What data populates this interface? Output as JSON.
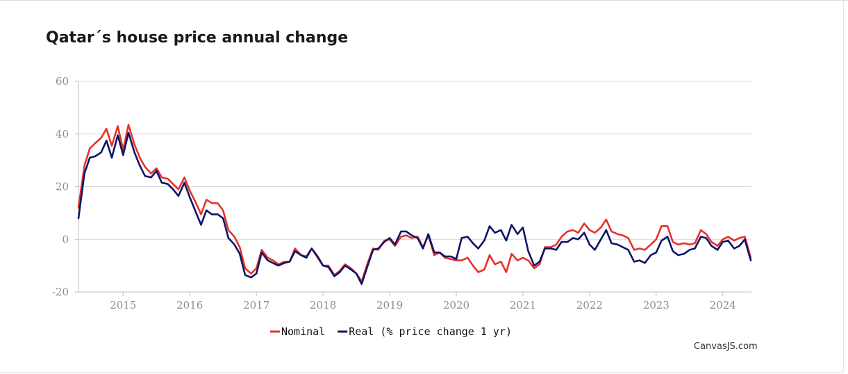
{
  "chart_data": {
    "type": "line",
    "title": "Qatar´s house price annual change",
    "xlabel": "",
    "ylabel": "",
    "ylim": [
      -20,
      60
    ],
    "yticks": [
      60,
      40,
      20,
      0,
      -20
    ],
    "xlim": [
      2014.33,
      2024.33
    ],
    "xticks": [
      "2015",
      "2016",
      "2017",
      "2018",
      "2019",
      "2020",
      "2021",
      "2022",
      "2023",
      "2024"
    ],
    "grid": true,
    "legend": "bottom",
    "series": [
      {
        "name": "Nominal",
        "color": "#e8302a",
        "points": [
          [
            2014.33,
            12
          ],
          [
            2014.42,
            28
          ],
          [
            2014.5,
            34.5
          ],
          [
            2014.58,
            36.5
          ],
          [
            2014.67,
            38.5
          ],
          [
            2014.75,
            42
          ],
          [
            2014.83,
            35.5
          ],
          [
            2014.92,
            43
          ],
          [
            2015.0,
            34
          ],
          [
            2015.08,
            43.5
          ],
          [
            2015.17,
            36
          ],
          [
            2015.25,
            31
          ],
          [
            2015.33,
            27.5
          ],
          [
            2015.42,
            25
          ],
          [
            2015.5,
            27
          ],
          [
            2015.58,
            23.5
          ],
          [
            2015.67,
            23
          ],
          [
            2015.75,
            21
          ],
          [
            2015.83,
            19
          ],
          [
            2015.92,
            23.5
          ],
          [
            2016.0,
            18.5
          ],
          [
            2016.08,
            14.5
          ],
          [
            2016.17,
            9.5
          ],
          [
            2016.25,
            15
          ],
          [
            2016.33,
            13.8
          ],
          [
            2016.42,
            13.7
          ],
          [
            2016.5,
            11
          ],
          [
            2016.58,
            3.5
          ],
          [
            2016.67,
            1
          ],
          [
            2016.75,
            -3
          ],
          [
            2016.83,
            -11
          ],
          [
            2016.92,
            -13
          ],
          [
            2017.0,
            -11
          ],
          [
            2017.08,
            -4
          ],
          [
            2017.17,
            -7
          ],
          [
            2017.25,
            -8
          ],
          [
            2017.33,
            -9.5
          ],
          [
            2017.42,
            -8.5
          ],
          [
            2017.5,
            -8.5
          ],
          [
            2017.58,
            -3.5
          ],
          [
            2017.67,
            -6
          ],
          [
            2017.75,
            -6.5
          ],
          [
            2017.83,
            -3.5
          ],
          [
            2017.92,
            -7
          ],
          [
            2018.0,
            -10
          ],
          [
            2018.08,
            -10
          ],
          [
            2018.17,
            -13.5
          ],
          [
            2018.25,
            -12
          ],
          [
            2018.33,
            -9.5
          ],
          [
            2018.42,
            -11
          ],
          [
            2018.5,
            -13
          ],
          [
            2018.58,
            -16
          ],
          [
            2018.67,
            -9
          ],
          [
            2018.75,
            -3.5
          ],
          [
            2018.83,
            -4
          ],
          [
            2018.92,
            -0.5
          ],
          [
            2019.0,
            0
          ],
          [
            2019.08,
            -2.5
          ],
          [
            2019.17,
            1
          ],
          [
            2019.25,
            1.5
          ],
          [
            2019.33,
            0.5
          ],
          [
            2019.42,
            1
          ],
          [
            2019.5,
            -3
          ],
          [
            2019.58,
            1.5
          ],
          [
            2019.67,
            -6
          ],
          [
            2019.75,
            -5
          ],
          [
            2019.83,
            -7
          ],
          [
            2019.92,
            -7.5
          ],
          [
            2020.0,
            -8
          ],
          [
            2020.08,
            -8
          ],
          [
            2020.17,
            -7
          ],
          [
            2020.25,
            -10
          ],
          [
            2020.33,
            -12.5
          ],
          [
            2020.42,
            -11.5
          ],
          [
            2020.5,
            -6
          ],
          [
            2020.58,
            -9.5
          ],
          [
            2020.67,
            -8.5
          ],
          [
            2020.75,
            -12.5
          ],
          [
            2020.83,
            -5.5
          ],
          [
            2020.92,
            -8
          ],
          [
            2021.0,
            -7
          ],
          [
            2021.08,
            -8
          ],
          [
            2021.17,
            -11
          ],
          [
            2021.25,
            -9.5
          ],
          [
            2021.33,
            -3
          ],
          [
            2021.42,
            -3
          ],
          [
            2021.5,
            -2
          ],
          [
            2021.58,
            1
          ],
          [
            2021.67,
            3
          ],
          [
            2021.75,
            3.5
          ],
          [
            2021.83,
            2.5
          ],
          [
            2021.92,
            6
          ],
          [
            2022.0,
            3.5
          ],
          [
            2022.08,
            2.5
          ],
          [
            2022.17,
            4.5
          ],
          [
            2022.25,
            7.5
          ],
          [
            2022.33,
            3
          ],
          [
            2022.42,
            2
          ],
          [
            2022.5,
            1.5
          ],
          [
            2022.58,
            0.5
          ],
          [
            2022.67,
            -4
          ],
          [
            2022.75,
            -3.5
          ],
          [
            2022.83,
            -4
          ],
          [
            2022.92,
            -2
          ],
          [
            2023.0,
            0
          ],
          [
            2023.08,
            5
          ],
          [
            2023.17,
            5
          ],
          [
            2023.25,
            -1
          ],
          [
            2023.33,
            -2
          ],
          [
            2023.42,
            -1.5
          ],
          [
            2023.5,
            -2
          ],
          [
            2023.58,
            -1.5
          ],
          [
            2023.67,
            3.5
          ],
          [
            2023.75,
            2
          ],
          [
            2023.83,
            -1
          ],
          [
            2023.92,
            -2.5
          ],
          [
            2024.0,
            0
          ],
          [
            2024.08,
            1
          ],
          [
            2024.17,
            -0.5
          ],
          [
            2024.25,
            0.5
          ],
          [
            2024.33,
            1
          ],
          [
            2024.42,
            -7
          ]
        ]
      },
      {
        "name": "Real (% price change 1 yr)",
        "color": "#0d1566",
        "points": [
          [
            2014.33,
            8
          ],
          [
            2014.42,
            25
          ],
          [
            2014.5,
            31
          ],
          [
            2014.58,
            31.5
          ],
          [
            2014.67,
            33
          ],
          [
            2014.75,
            37.5
          ],
          [
            2014.83,
            31
          ],
          [
            2014.92,
            39.5
          ],
          [
            2015.0,
            32
          ],
          [
            2015.08,
            40.5
          ],
          [
            2015.17,
            33
          ],
          [
            2015.25,
            28
          ],
          [
            2015.33,
            24
          ],
          [
            2015.42,
            23.5
          ],
          [
            2015.5,
            26
          ],
          [
            2015.58,
            21.5
          ],
          [
            2015.67,
            21
          ],
          [
            2015.75,
            19
          ],
          [
            2015.83,
            16.5
          ],
          [
            2015.92,
            21.5
          ],
          [
            2016.0,
            16
          ],
          [
            2016.08,
            11
          ],
          [
            2016.17,
            5.5
          ],
          [
            2016.25,
            11
          ],
          [
            2016.33,
            9.5
          ],
          [
            2016.42,
            9.5
          ],
          [
            2016.5,
            8
          ],
          [
            2016.58,
            0.5
          ],
          [
            2016.67,
            -2
          ],
          [
            2016.75,
            -5.5
          ],
          [
            2016.83,
            -13.5
          ],
          [
            2016.92,
            -14.5
          ],
          [
            2017.0,
            -13
          ],
          [
            2017.08,
            -5
          ],
          [
            2017.17,
            -8
          ],
          [
            2017.25,
            -9
          ],
          [
            2017.33,
            -10
          ],
          [
            2017.42,
            -9
          ],
          [
            2017.5,
            -8.5
          ],
          [
            2017.58,
            -4.5
          ],
          [
            2017.67,
            -6
          ],
          [
            2017.75,
            -7
          ],
          [
            2017.83,
            -3.5
          ],
          [
            2017.92,
            -6.5
          ],
          [
            2018.0,
            -10
          ],
          [
            2018.08,
            -10.5
          ],
          [
            2018.17,
            -14
          ],
          [
            2018.25,
            -12.5
          ],
          [
            2018.33,
            -10
          ],
          [
            2018.42,
            -11.5
          ],
          [
            2018.5,
            -13
          ],
          [
            2018.58,
            -17
          ],
          [
            2018.67,
            -10
          ],
          [
            2018.75,
            -4
          ],
          [
            2018.83,
            -3.5
          ],
          [
            2018.92,
            -1
          ],
          [
            2019.0,
            0.5
          ],
          [
            2019.08,
            -2
          ],
          [
            2019.17,
            3
          ],
          [
            2019.25,
            3
          ],
          [
            2019.33,
            1.5
          ],
          [
            2019.42,
            0.5
          ],
          [
            2019.5,
            -3.5
          ],
          [
            2019.58,
            2
          ],
          [
            2019.67,
            -5
          ],
          [
            2019.75,
            -5
          ],
          [
            2019.83,
            -6.5
          ],
          [
            2019.92,
            -6.5
          ],
          [
            2020.0,
            -7.5
          ],
          [
            2020.08,
            0.5
          ],
          [
            2020.17,
            1
          ],
          [
            2020.25,
            -1.5
          ],
          [
            2020.33,
            -3.5
          ],
          [
            2020.42,
            -0.5
          ],
          [
            2020.5,
            5
          ],
          [
            2020.58,
            2.5
          ],
          [
            2020.67,
            3.5
          ],
          [
            2020.75,
            -0.5
          ],
          [
            2020.83,
            5.5
          ],
          [
            2020.92,
            2
          ],
          [
            2021.0,
            4.5
          ],
          [
            2021.08,
            -4.5
          ],
          [
            2021.17,
            -10
          ],
          [
            2021.25,
            -8.5
          ],
          [
            2021.33,
            -3.5
          ],
          [
            2021.42,
            -3.5
          ],
          [
            2021.5,
            -4
          ],
          [
            2021.58,
            -1
          ],
          [
            2021.67,
            -1
          ],
          [
            2021.75,
            0.5
          ],
          [
            2021.83,
            0
          ],
          [
            2021.92,
            2.5
          ],
          [
            2022.0,
            -2
          ],
          [
            2022.08,
            -4
          ],
          [
            2022.17,
            0
          ],
          [
            2022.25,
            3.5
          ],
          [
            2022.33,
            -1.5
          ],
          [
            2022.42,
            -2
          ],
          [
            2022.5,
            -3
          ],
          [
            2022.58,
            -4
          ],
          [
            2022.67,
            -8.5
          ],
          [
            2022.75,
            -8
          ],
          [
            2022.83,
            -9
          ],
          [
            2022.92,
            -6
          ],
          [
            2023.0,
            -5
          ],
          [
            2023.08,
            -0.5
          ],
          [
            2023.17,
            1
          ],
          [
            2023.25,
            -4.5
          ],
          [
            2023.33,
            -6
          ],
          [
            2023.42,
            -5.5
          ],
          [
            2023.5,
            -4
          ],
          [
            2023.58,
            -3.5
          ],
          [
            2023.67,
            1
          ],
          [
            2023.75,
            0.5
          ],
          [
            2023.83,
            -2.5
          ],
          [
            2023.92,
            -4
          ],
          [
            2024.0,
            -1
          ],
          [
            2024.08,
            -0.5
          ],
          [
            2024.17,
            -3.5
          ],
          [
            2024.25,
            -2.5
          ],
          [
            2024.33,
            0
          ],
          [
            2024.42,
            -8
          ]
        ]
      }
    ]
  },
  "credit": "CanvasJS.com"
}
